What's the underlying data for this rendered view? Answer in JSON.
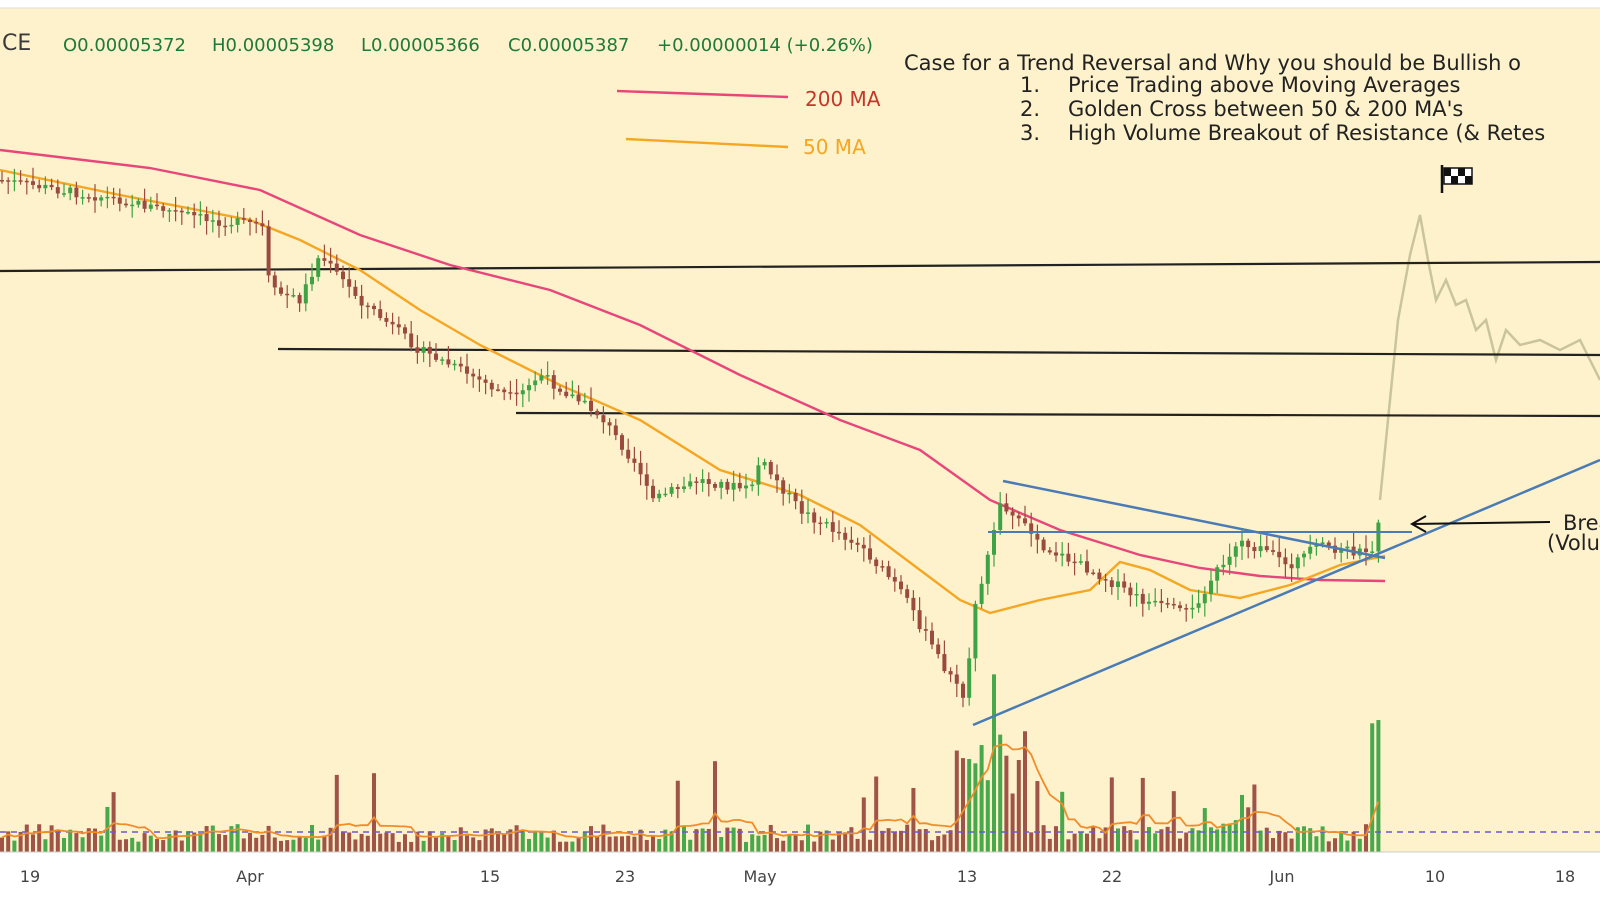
{
  "header": {
    "symbol": "CE",
    "open": "O0.00005372",
    "high": "H0.00005398",
    "low": "L0.00005366",
    "close": "C0.00005387",
    "change": "+0.00000014 (+0.26%)"
  },
  "legend": {
    "ma200_label": "200 MA",
    "ma50_label": "50 MA",
    "ma200_color": "#e8457a",
    "ma50_color": "#f5a623"
  },
  "annotation": {
    "title": "Case for a Trend Reversal and Why you should be Bullish o",
    "points": [
      {
        "num": "1.",
        "text": "Price Trading above Moving Averages"
      },
      {
        "num": "2.",
        "text": "Golden Cross between 50 & 200 MA's"
      },
      {
        "num": "3.",
        "text": "High Volume Breakout of Resistance (& Retes"
      }
    ],
    "breakout_line1": "Brea",
    "breakout_line2": "(Volu",
    "flag_icon": "checkered-flag"
  },
  "colors": {
    "background": "#fdf2cc",
    "up_candle": "#3da344",
    "down_candle": "#9b4a3f",
    "trendline": "#4a7bb5",
    "resistance": "#222222",
    "volume_ma": "#f08c2a",
    "baseline": "#6a5acd",
    "projection": "#c9c49a"
  },
  "chart_data": {
    "type": "candlestick",
    "x_tick_labels": [
      "19",
      "Apr",
      "15",
      "23",
      "May",
      "13",
      "22",
      "Jun",
      "10",
      "18"
    ],
    "series": [
      {
        "name": "200 MA",
        "trend": "declining from 0.0000605 to 0.0000530"
      },
      {
        "name": "50 MA",
        "trend": "declining from 0.0000600 to 0.0000470, then rising to 0.0000540"
      }
    ],
    "price_approx": {
      "start": 6e-05,
      "april_low": 5e-05,
      "may_low": 4.4e-05,
      "mid_may_high": 5.65e-05,
      "last_close": 5.387e-05
    },
    "horizontal_levels": [
      6.6e-05,
      6.25e-05,
      5.95e-05
    ],
    "pattern": "symmetrical triangle breakout",
    "grid": false
  }
}
